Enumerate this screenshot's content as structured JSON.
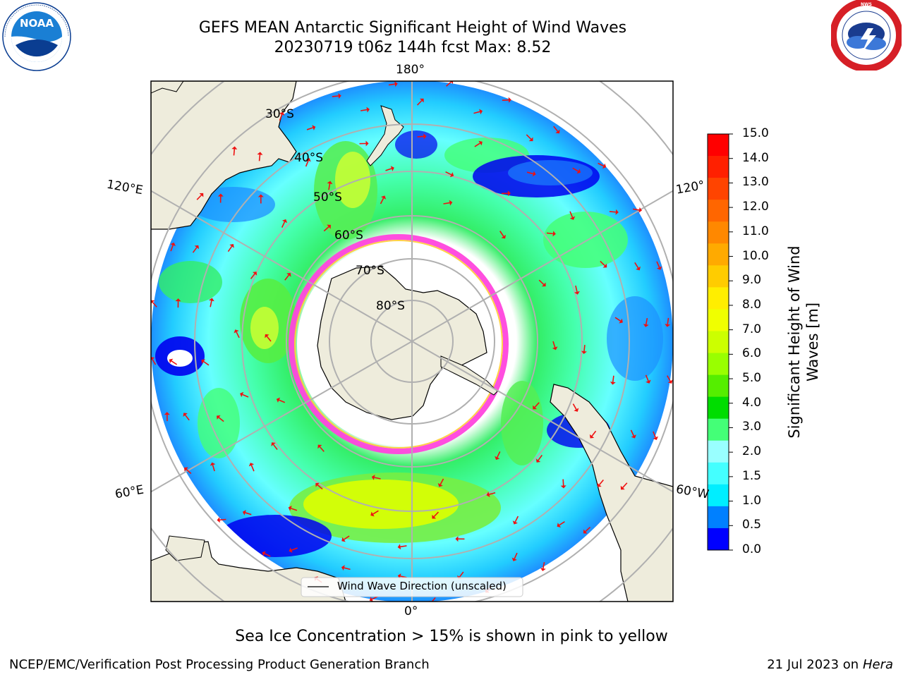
{
  "header": {
    "title_line1": "GEFS MEAN Antarctic Significant Height of Wind Waves",
    "title_line2": "20230719 t06z 144h fcst   Max: 8.52"
  },
  "logos": {
    "noaa_text": "NOAA",
    "noaa_ring_text": "NATIONAL OCEANIC AND ATMOSPHERIC ADMINISTRATION · U.S. DEPARTMENT OF COMMERCE",
    "nws_ring_text": "NATIONAL WEATHER SERVICE"
  },
  "map": {
    "projection": "south-polar-stereographic",
    "longitude_labels": {
      "top": "180°",
      "bottom": "0°",
      "upper_left": "120°E",
      "lower_left": "60°E",
      "upper_right": "120°",
      "lower_right": "60°W"
    },
    "latitude_labels": [
      "30°S",
      "40°S",
      "50°S",
      "60°S",
      "70°S",
      "80°S"
    ],
    "legend_label": "Wind Wave Direction (unscaled)",
    "colors": {
      "ocean_low": "#0000ff",
      "ocean_mid": "#1e90ff",
      "ocean_cyan": "#00e5ff",
      "ocean_light": "#99ffff",
      "wave_green": "#33ee66",
      "wave_yellow": "#ddff00",
      "land": "#eeecdc",
      "ice_edge": "#ff44dd",
      "arrow": "#ee1111",
      "grid": "#b0b0b0"
    }
  },
  "colorbar": {
    "label": "Significant Height of Wind Waves [m]",
    "label_line1": "Significant Height of Wind",
    "label_line2": "Waves [m]",
    "ticks": [
      "15.0",
      "14.0",
      "13.0",
      "12.0",
      "11.0",
      "10.0",
      "9.0",
      "8.0",
      "7.0",
      "6.0",
      "5.0",
      "4.0",
      "3.0",
      "2.0",
      "1.5",
      "1.0",
      "0.5",
      "0.0"
    ],
    "colors": [
      "#ff0000",
      "#ff2000",
      "#ff4400",
      "#ff6600",
      "#ff8800",
      "#ffaa00",
      "#ffcc00",
      "#ffee00",
      "#f0ff00",
      "#ccff00",
      "#99ff00",
      "#55ee00",
      "#00dd00",
      "#44ff77",
      "#99ffff",
      "#44ffff",
      "#00eeff",
      "#0080ff",
      "#0000ff"
    ]
  },
  "caption": "Sea Ice Concentration > 15% is shown in pink to yellow",
  "footer": {
    "left": "NCEP/EMC/Verification Post Processing Product Generation Branch",
    "right_prefix": "21 Jul 2023 on ",
    "right_italic": "Hera"
  }
}
